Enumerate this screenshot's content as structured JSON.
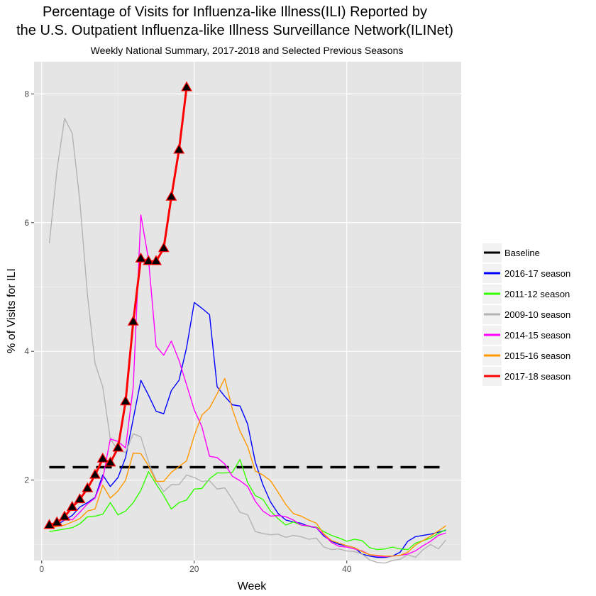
{
  "chart_data": {
    "type": "line",
    "title": [
      "Percentage of Visits for Influenza-like Illness(ILI) Reported by",
      "the U.S. Outpatient Influenza-like Illness Surveillance Network(ILINet)"
    ],
    "subtitle": "Weekly National Summary, 2017-2018 and Selected Previous Seasons",
    "xlabel": "Week",
    "ylabel": "% of Visits for ILI",
    "xlim": [
      -1,
      55
    ],
    "ylim": [
      0.75,
      8.5
    ],
    "xticks": [
      0,
      20,
      40
    ],
    "yticks": [
      2,
      4,
      6,
      8
    ],
    "grid": true,
    "legend_position": "right",
    "baseline": {
      "name": "Baseline",
      "value": 2.2,
      "x": [
        1,
        53
      ],
      "color": "#000000"
    },
    "series": [
      {
        "name": "2016-17 season",
        "color": "#0000ff",
        "y": [
          1.28,
          1.3,
          1.38,
          1.45,
          1.58,
          1.65,
          1.73,
          2.08,
          1.9,
          2.04,
          2.35,
          2.95,
          3.55,
          3.32,
          3.07,
          3.03,
          3.39,
          3.55,
          4.06,
          4.76,
          4.67,
          4.57,
          3.45,
          3.3,
          3.17,
          3.15,
          2.87,
          2.28,
          1.93,
          1.66,
          1.48,
          1.38,
          1.35,
          1.33,
          1.28,
          1.26,
          1.13,
          1.05,
          1.0,
          0.98,
          0.95,
          0.85,
          0.82,
          0.8,
          0.8,
          0.82,
          0.88,
          1.05,
          1.12,
          1.14,
          1.16,
          1.19,
          1.22
        ]
      },
      {
        "name": "2011-12 season",
        "color": "#33ff00",
        "y": [
          1.2,
          1.22,
          1.24,
          1.26,
          1.32,
          1.43,
          1.44,
          1.47,
          1.65,
          1.46,
          1.52,
          1.65,
          1.84,
          2.13,
          1.94,
          1.76,
          1.55,
          1.65,
          1.69,
          1.86,
          1.87,
          2.02,
          2.11,
          2.11,
          2.12,
          2.32,
          1.96,
          1.76,
          1.7,
          1.52,
          1.4,
          1.3,
          1.35,
          1.3,
          1.28,
          1.27,
          1.2,
          1.14,
          1.1,
          1.05,
          1.08,
          1.06,
          0.95,
          0.92,
          0.93,
          0.96,
          0.93,
          0.92,
          1.02,
          1.06,
          1.1,
          1.17,
          1.23
        ]
      },
      {
        "name": "2009-10 season",
        "color": "#b3b3b3",
        "y": [
          5.68,
          6.82,
          7.62,
          7.39,
          6.34,
          4.87,
          3.81,
          3.45,
          2.64,
          2.46,
          2.43,
          2.72,
          2.67,
          2.28,
          2.0,
          1.82,
          1.93,
          1.93,
          2.08,
          2.04,
          1.98,
          1.99,
          1.86,
          1.88,
          1.7,
          1.5,
          1.46,
          1.2,
          1.17,
          1.15,
          1.16,
          1.11,
          1.14,
          1.12,
          1.08,
          1.1,
          0.96,
          0.92,
          0.93,
          0.9,
          0.89,
          0.85,
          0.76,
          0.72,
          0.71,
          0.75,
          0.77,
          0.84,
          0.8,
          0.92,
          1.0,
          0.93,
          1.07
        ]
      },
      {
        "name": "2014-15 season",
        "color": "#ff00ff",
        "y": [
          1.3,
          1.35,
          1.42,
          1.38,
          1.5,
          1.63,
          1.72,
          2.02,
          2.64,
          2.6,
          2.5,
          3.45,
          6.12,
          5.43,
          4.08,
          3.94,
          4.16,
          3.86,
          3.48,
          3.09,
          2.83,
          2.37,
          2.35,
          2.25,
          2.06,
          1.99,
          1.9,
          1.67,
          1.52,
          1.44,
          1.45,
          1.43,
          1.38,
          1.3,
          1.29,
          1.26,
          1.15,
          1.03,
          0.97,
          0.96,
          0.93,
          0.9,
          0.84,
          0.82,
          0.81,
          0.82,
          0.83,
          0.85,
          0.9,
          0.98,
          1.05,
          1.14,
          1.18
        ]
      },
      {
        "name": "2015-16 season",
        "color": "#ff9900",
        "y": [
          1.25,
          1.28,
          1.3,
          1.35,
          1.4,
          1.52,
          1.55,
          1.92,
          1.72,
          1.83,
          2.0,
          2.42,
          2.41,
          2.22,
          1.98,
          1.98,
          2.12,
          2.21,
          2.3,
          2.69,
          3.01,
          3.12,
          3.34,
          3.58,
          3.1,
          2.76,
          2.52,
          2.14,
          2.08,
          1.99,
          1.81,
          1.62,
          1.48,
          1.44,
          1.38,
          1.33,
          1.16,
          1.06,
          1.02,
          0.98,
          0.95,
          0.89,
          0.84,
          0.83,
          0.82,
          0.82,
          0.83,
          0.88,
          0.99,
          1.06,
          1.13,
          1.21,
          1.29
        ]
      },
      {
        "name": "2017-18 season",
        "color": "#ff0000",
        "thick": true,
        "markers": true,
        "y": [
          1.3,
          1.34,
          1.43,
          1.58,
          1.7,
          1.87,
          2.08,
          2.33,
          2.27,
          2.5,
          3.22,
          4.46,
          5.44,
          5.4,
          5.4,
          5.6,
          6.4,
          7.13,
          8.1
        ]
      }
    ]
  }
}
